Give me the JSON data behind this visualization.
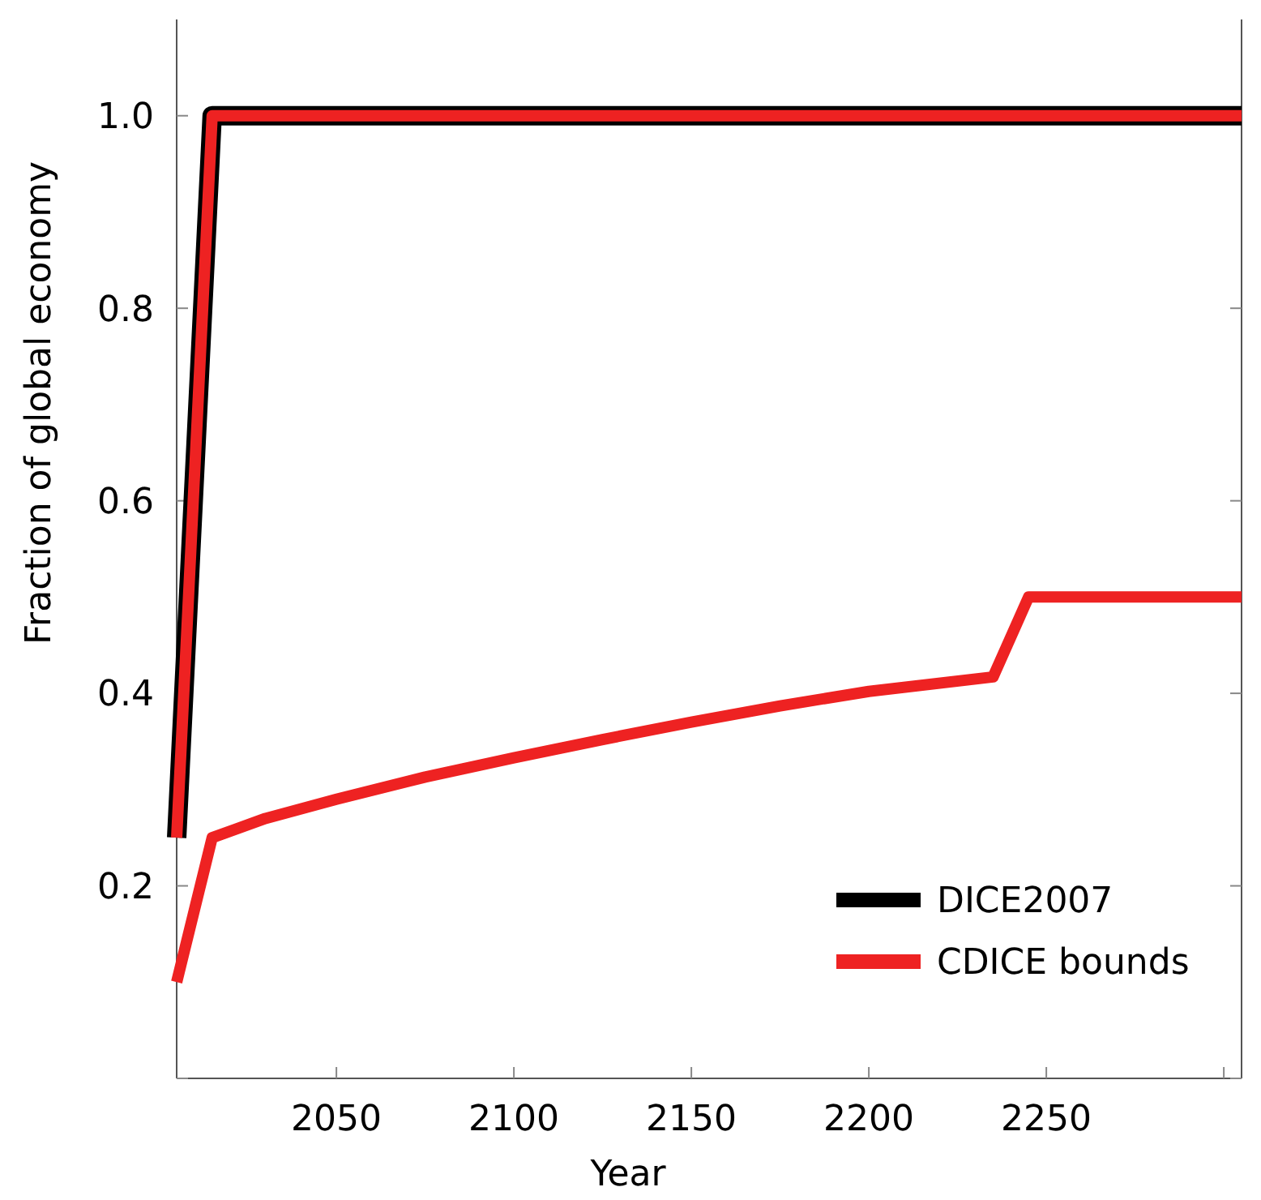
{
  "chart_data": {
    "type": "line",
    "xlabel": "Year",
    "ylabel": "Fraction of global economy",
    "xlim": [
      2005,
      2305
    ],
    "xticks": [
      2050,
      2100,
      2150,
      2200,
      2250,
      {
        "value": 2300,
        "label": null
      }
    ],
    "ylim": [
      0,
      1.1
    ],
    "yticks": [
      {
        "value": 0,
        "label": null
      },
      0.2,
      0.4,
      0.6,
      0.8,
      {
        "value": 1,
        "label": "1.0"
      }
    ],
    "grid": false,
    "legend": "bottom right",
    "line_style": "solid",
    "marker": "none",
    "series": [
      {
        "name": "DICE2007",
        "color": "#000000",
        "x": [
          2005,
          2015,
          2305
        ],
        "values": [
          0.25,
          1.0,
          1.0
        ]
      },
      {
        "name": "CDICE bounds",
        "color": "#ee2222",
        "x": [
          2005,
          2015,
          2305
        ],
        "values": [
          0.25,
          1.0,
          1.0
        ]
      },
      {
        "color": "#ee2222",
        "x": [
          2005,
          2015,
          2030,
          2050,
          2075,
          2100,
          2125,
          2150,
          2175,
          2200,
          2235,
          2245,
          2305
        ],
        "values": [
          0.1,
          0.25,
          0.27,
          0.29,
          0.313,
          0.333,
          0.352,
          0.37,
          0.387,
          0.402,
          0.417,
          0.5,
          0.5
        ]
      }
    ]
  }
}
